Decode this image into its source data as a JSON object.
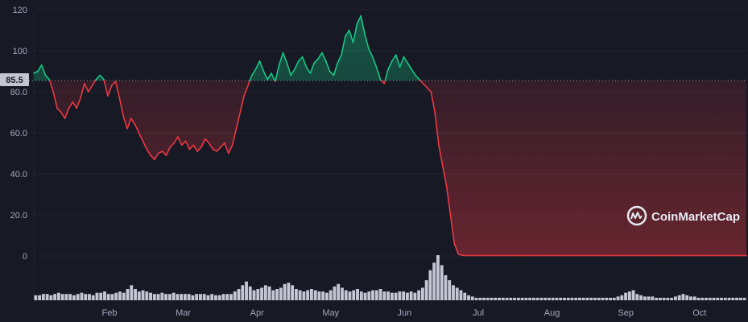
{
  "chart_data": {
    "type": "line",
    "title": "",
    "xlabel": "",
    "ylabel": "",
    "x_ticks": [
      "Feb",
      "Mar",
      "Apr",
      "May",
      "Jun",
      "Jul",
      "Aug",
      "Sep",
      "Oct"
    ],
    "y_ticks": [
      "0",
      "20.0",
      "40.0",
      "60.0",
      "80.0",
      "100",
      "120"
    ],
    "ylim": [
      0,
      120
    ],
    "reference_value": 85.5,
    "reference_label": "85.5",
    "above_color": "#16c784",
    "below_color": "#ea3943",
    "grid": true,
    "legend": "none",
    "series": [
      {
        "values": [
          89,
          90,
          93,
          88,
          86,
          80,
          72,
          70,
          67,
          72,
          75,
          72,
          77,
          84,
          80,
          83,
          86,
          88,
          86,
          78,
          83,
          85,
          77,
          68,
          62,
          67,
          64,
          60,
          56,
          52,
          49,
          47,
          50,
          51,
          49,
          53,
          55,
          58,
          54,
          56,
          52,
          54,
          51,
          53,
          57,
          55,
          52,
          51,
          53,
          55,
          50,
          54,
          62,
          70,
          78,
          83,
          88,
          91,
          95,
          90,
          86,
          89,
          85,
          93,
          99,
          94,
          88,
          91,
          95,
          97,
          92,
          89,
          94,
          96,
          99,
          95,
          90,
          88,
          94,
          98,
          107,
          110,
          104,
          113,
          117,
          108,
          101,
          97,
          92,
          86,
          84,
          91,
          95,
          98,
          92,
          97,
          94,
          91,
          88,
          86,
          84,
          82,
          80,
          70,
          54,
          44,
          34,
          20,
          6,
          1,
          0.3,
          0.2,
          0.2,
          0.2,
          0.2,
          0.2,
          0.2,
          0.2,
          0.2,
          0.2,
          0.2,
          0.2,
          0.2,
          0.2,
          0.2,
          0.2,
          0.2,
          0.2,
          0.2,
          0.2,
          0.2,
          0.2,
          0.2,
          0.2,
          0.2,
          0.2,
          0.2,
          0.2,
          0.2,
          0.2,
          0.2,
          0.2,
          0.2,
          0.2,
          0.2,
          0.2,
          0.2,
          0.2,
          0.2,
          0.2,
          0.2,
          0.2,
          0.2,
          0.2,
          0.2,
          0.2,
          0.2,
          0.2,
          0.2,
          0.2,
          0.2,
          0.2,
          0.2,
          0.2,
          0.2,
          0.2,
          0.2,
          0.2,
          0.2,
          0.2,
          0.2,
          0.2,
          0.2,
          0.2,
          0.2,
          0.2,
          0.2,
          0.2,
          0.2,
          0.2,
          0.2,
          0.2,
          0.2,
          0.2
        ]
      }
    ],
    "volume": [
      4,
      4,
      5,
      5,
      4,
      5,
      6,
      5,
      5,
      5,
      4,
      5,
      6,
      5,
      5,
      4,
      6,
      6,
      7,
      5,
      5,
      6,
      7,
      6,
      9,
      12,
      9,
      7,
      8,
      7,
      6,
      5,
      5,
      6,
      5,
      5,
      6,
      5,
      5,
      5,
      5,
      4,
      5,
      5,
      5,
      4,
      5,
      4,
      4,
      5,
      5,
      5,
      7,
      9,
      12,
      15,
      11,
      8,
      9,
      10,
      12,
      11,
      8,
      9,
      10,
      13,
      14,
      12,
      9,
      8,
      7,
      8,
      9,
      8,
      7,
      7,
      6,
      8,
      11,
      13,
      10,
      8,
      7,
      8,
      9,
      7,
      6,
      7,
      8,
      8,
      9,
      7,
      7,
      6,
      6,
      7,
      7,
      6,
      7,
      6,
      8,
      10,
      16,
      24,
      30,
      36,
      28,
      20,
      16,
      12,
      10,
      8,
      6,
      4,
      3,
      2,
      2,
      2,
      2,
      2,
      2,
      2,
      2,
      2,
      2,
      2,
      2,
      2,
      2,
      2,
      2,
      2,
      2,
      2,
      2,
      2,
      2,
      2,
      2,
      2,
      2,
      2,
      2,
      2,
      2,
      2,
      2,
      2,
      2,
      2,
      2,
      2,
      3,
      4,
      6,
      7,
      8,
      5,
      4,
      3,
      3,
      3,
      2,
      2,
      2,
      2,
      2,
      3,
      4,
      5,
      4,
      3,
      3,
      2,
      2,
      2,
      2,
      2,
      2,
      2,
      2,
      2,
      2,
      2,
      2,
      2
    ]
  },
  "watermark": {
    "text": "CoinMarketCap",
    "icon": "coinmarketcap-logo-icon"
  }
}
